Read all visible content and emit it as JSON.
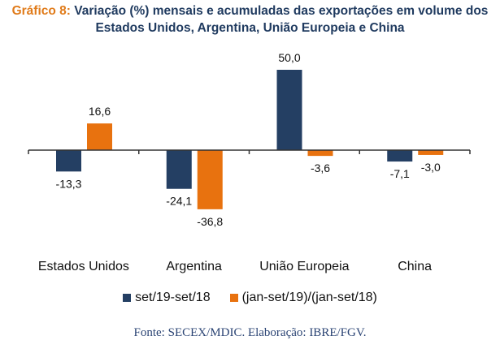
{
  "title": {
    "prefix": "Gráfico 8:",
    "line1": "Variação (%) mensais e acumuladas das exportações em volume dos",
    "line2": "Estados Unidos, Argentina, União Europeia e China"
  },
  "source": "Fonte: SECEX/MDIC. Elaboração: IBRE/FGV.",
  "colors": {
    "series1": "#243f63",
    "series2": "#e8720f",
    "axis": "#333333"
  },
  "chart_data": {
    "type": "bar",
    "title": "Variação (%) mensais e acumuladas das exportações em volume dos Estados Unidos, Argentina, União Europeia e China",
    "categories": [
      "Estados Unidos",
      "Argentina",
      "União Europeia",
      "China"
    ],
    "series": [
      {
        "name": "set/19-set/18",
        "values": [
          -13.3,
          -24.1,
          50.0,
          -7.1
        ],
        "labels": [
          "-13,3",
          "-24,1",
          "50,0",
          "-7,1"
        ]
      },
      {
        "name": "(jan-set/19)/(jan-set/18)",
        "values": [
          16.6,
          -36.8,
          -3.6,
          -3.0
        ],
        "labels": [
          "16,6",
          "-36,8",
          "-3,6",
          "-3,0"
        ]
      }
    ],
    "xlabel": "",
    "ylabel": "",
    "ylim": [
      -50,
      50
    ],
    "grid": false,
    "legend_position": "bottom"
  }
}
